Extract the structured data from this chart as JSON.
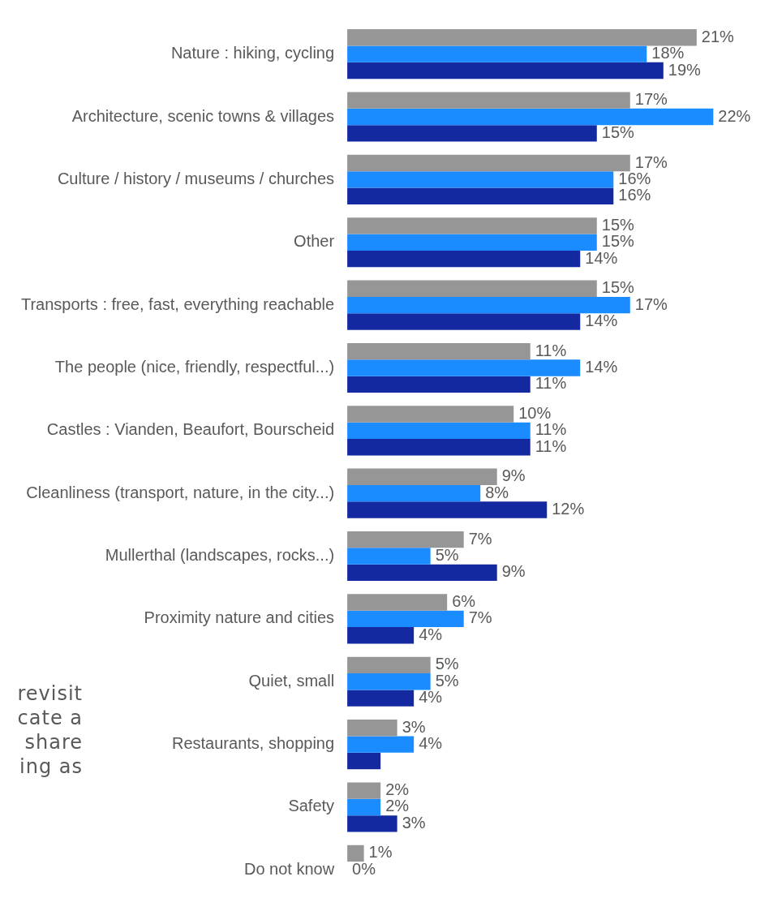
{
  "chart_data": {
    "type": "bar",
    "orientation": "horizontal",
    "legend": false,
    "grid": false,
    "categories": [
      "Nature : hiking, cycling",
      "Architecture, scenic towns & villages",
      "Culture / history / museums / churches",
      "Other",
      "Transports : free, fast, everything reachable",
      "The people (nice, friendly, respectful...)",
      "Castles : Vianden, Beaufort, Bourscheid",
      "Cleanliness (transport, nature, in the city...)",
      "Mullerthal (landscapes, rocks...)",
      "Proximity nature and cities",
      "Quiet, small",
      "Restaurants, shopping",
      "Safety",
      "Do not know"
    ],
    "series": [
      {
        "color": "#969696",
        "values": [
          21,
          17,
          17,
          15,
          15,
          11,
          10,
          9,
          7,
          6,
          5,
          3,
          2,
          1
        ],
        "value_labels": [
          "21%",
          "17%",
          "17%",
          "15%",
          "15%",
          "11%",
          "10%",
          "9%",
          "7%",
          "6%",
          "5%",
          "3%",
          "2%",
          "1%"
        ]
      },
      {
        "color": "#1a8cff",
        "values": [
          18,
          22,
          16,
          15,
          17,
          14,
          11,
          8,
          5,
          7,
          5,
          4,
          2,
          0
        ],
        "value_labels": [
          "18%",
          "22%",
          "16%",
          "15%",
          "17%",
          "14%",
          "11%",
          "8%",
          "5%",
          "7%",
          "5%",
          "4%",
          "2%",
          "0%"
        ]
      },
      {
        "color": "#1428a0",
        "values": [
          19,
          15,
          16,
          14,
          14,
          11,
          11,
          12,
          9,
          4,
          4,
          2,
          3,
          null
        ],
        "value_labels": [
          "19%",
          "15%",
          "16%",
          "14%",
          "14%",
          "11%",
          "11%",
          "12%",
          "9%",
          "4%",
          "4%",
          null,
          "3%",
          null
        ]
      }
    ],
    "annotations": [
      "revisit",
      "cate a",
      "share",
      "ing as"
    ]
  }
}
